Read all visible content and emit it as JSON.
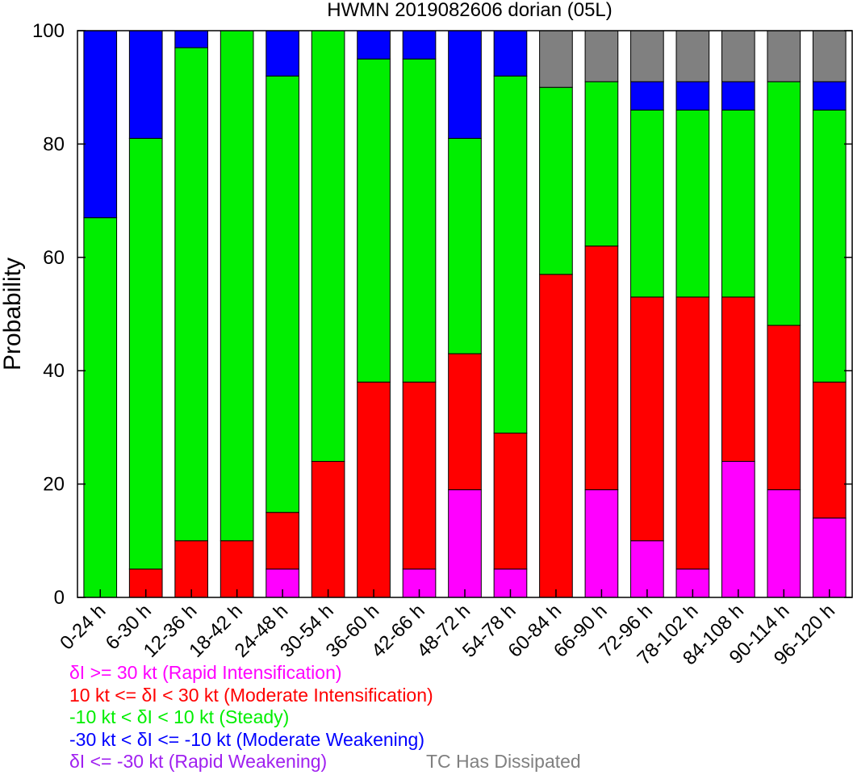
{
  "chart_data": {
    "type": "bar",
    "stacked": true,
    "title": "HWMN 2019082606 dorian (05L)",
    "xlabel": "",
    "ylabel": "Probability",
    "ylim": [
      0,
      100
    ],
    "yticks": [
      0,
      20,
      40,
      60,
      80,
      100
    ],
    "categories": [
      "0-24 h",
      "6-30 h",
      "12-36 h",
      "18-42 h",
      "24-48 h",
      "30-54 h",
      "36-60 h",
      "42-66 h",
      "48-72 h",
      "54-78 h",
      "60-84 h",
      "66-90 h",
      "72-96 h",
      "78-102 h",
      "84-108 h",
      "90-114 h",
      "96-120 h"
    ],
    "series": [
      {
        "name": "δI >= 30 kt (Rapid Intensification)",
        "color": "#ff00ff",
        "values": [
          0,
          0,
          0,
          0,
          5,
          0,
          0,
          5,
          19,
          5,
          0,
          19,
          10,
          5,
          24,
          19,
          14
        ]
      },
      {
        "name": "10 kt <= δI < 30 kt (Moderate Intensification)",
        "color": "#ff0000",
        "values": [
          0,
          5,
          10,
          10,
          10,
          24,
          38,
          33,
          24,
          24,
          57,
          43,
          43,
          48,
          29,
          29,
          24
        ]
      },
      {
        "name": "-10 kt < δI < 10 kt (Steady)",
        "color": "#00ee00",
        "values": [
          67,
          76,
          87,
          90,
          77,
          76,
          57,
          57,
          38,
          63,
          33,
          29,
          33,
          33,
          33,
          43,
          48
        ]
      },
      {
        "name": "-30 kt < δI <= -10 kt (Moderate Weakening)",
        "color": "#0000ff",
        "values": [
          33,
          19,
          3,
          0,
          8,
          0,
          5,
          5,
          19,
          8,
          0,
          0,
          5,
          5,
          5,
          0,
          5
        ]
      },
      {
        "name": "δI <= -30 kt (Rapid Weakening)",
        "color": "#a020f0",
        "values": [
          0,
          0,
          0,
          0,
          0,
          0,
          0,
          0,
          0,
          0,
          0,
          0,
          0,
          0,
          0,
          0,
          0
        ]
      },
      {
        "name": "TC Has Dissipated",
        "color": "#808080",
        "values": [
          0,
          0,
          0,
          0,
          0,
          0,
          0,
          0,
          0,
          0,
          10,
          9,
          9,
          9,
          9,
          9,
          9
        ]
      }
    ]
  },
  "legend": [
    {
      "text": "δI >= 30 kt (Rapid Intensification)",
      "color": "#ff00ff"
    },
    {
      "text": "10 kt <= δI < 30 kt (Moderate Intensification)",
      "color": "#ff0000"
    },
    {
      "text": "-10 kt < δI < 10 kt (Steady)",
      "color": "#00ee00"
    },
    {
      "text": "-30 kt < δI <= -10 kt (Moderate Weakening)",
      "color": "#0000ff"
    },
    {
      "text": "δI <= -30 kt (Rapid Weakening)",
      "color": "#a020f0"
    },
    {
      "text": "TC Has Dissipated",
      "color": "#808080"
    }
  ]
}
